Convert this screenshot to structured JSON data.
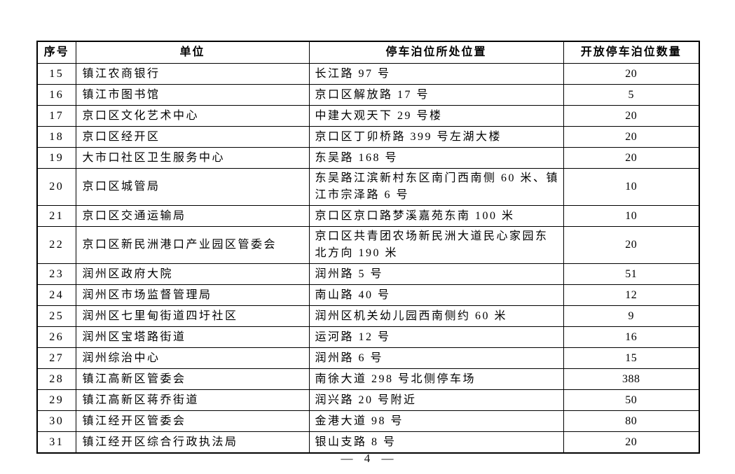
{
  "table": {
    "headers": {
      "no": "序号",
      "unit": "单位",
      "location": "停车泊位所处位置",
      "count": "开放停车泊位数量"
    },
    "rows": [
      {
        "no": "15",
        "unit": "镇江农商银行",
        "location": "长江路 97 号",
        "count": "20"
      },
      {
        "no": "16",
        "unit": "镇江市图书馆",
        "location": "京口区解放路 17 号",
        "count": "5"
      },
      {
        "no": "17",
        "unit": "京口区文化艺术中心",
        "location": "中建大观天下 29 号楼",
        "count": "20"
      },
      {
        "no": "18",
        "unit": "京口区经开区",
        "location": "京口区丁卯桥路 399 号左湖大楼",
        "count": "20"
      },
      {
        "no": "19",
        "unit": "大市口社区卫生服务中心",
        "location": "东吴路 168 号",
        "count": "20"
      },
      {
        "no": "20",
        "unit": "京口区城管局",
        "location": "东吴路江滨新村东区南门西南侧 60 米、镇江市宗泽路 6 号",
        "count": "10"
      },
      {
        "no": "21",
        "unit": "京口区交通运输局",
        "location": "京口区京口路梦溪嘉苑东南 100 米",
        "count": "10"
      },
      {
        "no": "22",
        "unit": "京口区新民洲港口产业园区管委会",
        "location": "京口区共青团农场新民洲大道民心家园东北方向 190 米",
        "count": "20"
      },
      {
        "no": "23",
        "unit": "润州区政府大院",
        "location": "润州路 5 号",
        "count": "51"
      },
      {
        "no": "24",
        "unit": "润州区市场监督管理局",
        "location": "南山路 40 号",
        "count": "12"
      },
      {
        "no": "25",
        "unit": "润州区七里甸街道四圩社区",
        "location": "润州区机关幼儿园西南侧约 60 米",
        "count": "9"
      },
      {
        "no": "26",
        "unit": "润州区宝塔路街道",
        "location": "运河路 12 号",
        "count": "16"
      },
      {
        "no": "27",
        "unit": "润州综治中心",
        "location": "润州路 6 号",
        "count": "15"
      },
      {
        "no": "28",
        "unit": "镇江高新区管委会",
        "location": "南徐大道 298 号北侧停车场",
        "count": "388"
      },
      {
        "no": "29",
        "unit": "镇江高新区蒋乔街道",
        "location": "润兴路 20 号附近",
        "count": "50"
      },
      {
        "no": "30",
        "unit": "镇江经开区管委会",
        "location": "金港大道 98 号",
        "count": "80"
      },
      {
        "no": "31",
        "unit": "镇江经开区综合行政执法局",
        "location": "银山支路 8 号",
        "count": "20"
      }
    ]
  },
  "footer": {
    "page_number": "— 4 —"
  }
}
